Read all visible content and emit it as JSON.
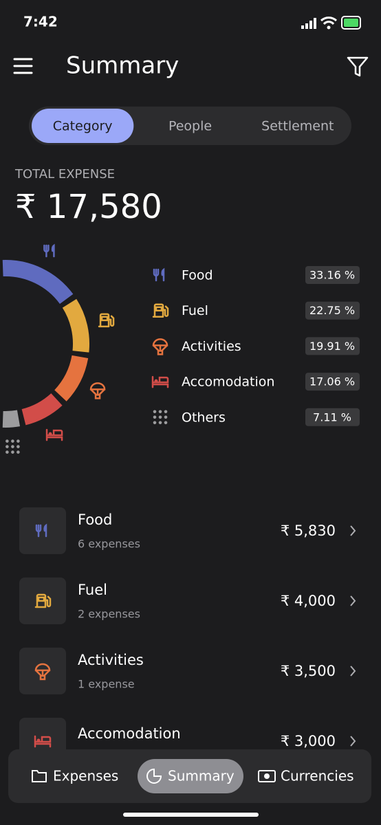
{
  "status_bar": {
    "time": "7:42"
  },
  "header": {
    "title": "Summary"
  },
  "tabs": {
    "items": [
      "Category",
      "People",
      "Settlement"
    ],
    "selected": 0
  },
  "total": {
    "label": "TOTAL EXPENSE",
    "amount": "₹ 17,580"
  },
  "breakdown": [
    {
      "name": "Food",
      "share": 33.16,
      "share_label": "33.16 %",
      "color": "#5f6bbf"
    },
    {
      "name": "Fuel",
      "share": 22.75,
      "share_label": "22.75 %",
      "color": "#e2a93f"
    },
    {
      "name": "Activities",
      "share": 19.91,
      "share_label": "19.91 %",
      "color": "#e5733f"
    },
    {
      "name": "Accomodation",
      "share": 17.06,
      "share_label": "17.06 %",
      "color": "#d24d49"
    },
    {
      "name": "Others",
      "share": 7.11,
      "share_label": "7.11 %",
      "color": "#9c9c9e"
    }
  ],
  "expenses": [
    {
      "name": "Food",
      "count": "6 expenses",
      "amount": "₹ 5,830"
    },
    {
      "name": "Fuel",
      "count": "2 expenses",
      "amount": "₹ 4,000"
    },
    {
      "name": "Activities",
      "count": "1 expense",
      "amount": "₹ 3,500"
    },
    {
      "name": "Accomodation",
      "amount": "₹ 3,000"
    }
  ],
  "nav": {
    "items": [
      "Expenses",
      "Summary",
      "Currencies"
    ],
    "selected": 1
  }
}
